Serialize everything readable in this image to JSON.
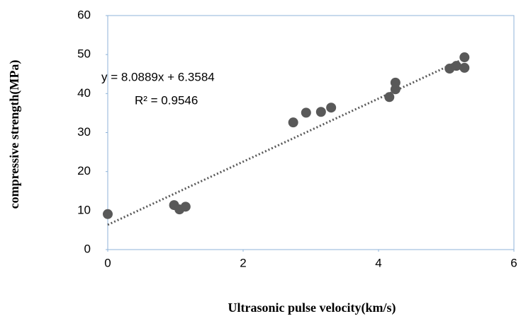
{
  "chart_data": {
    "type": "scatter",
    "x_label": "Ultrasonic pulse velocity(km/s)",
    "y_label": "compressive strength(MPa)",
    "annotations": [
      "y = 8.0889x + 6.3584",
      "R² = 0.9546"
    ],
    "trendline": {
      "slope": 8.0889,
      "intercept": 6.3584,
      "color": "#595959"
    },
    "color": "#595959",
    "x": [
      0,
      0.98,
      1.06,
      1.15,
      2.74,
      2.93,
      3.15,
      3.3,
      4.16,
      4.25,
      4.25,
      5.05,
      5.15,
      5.27,
      5.27
    ],
    "values": [
      9.1,
      11.4,
      10.3,
      11.0,
      32.6,
      35.1,
      35.3,
      36.4,
      39.1,
      41.1,
      42.8,
      46.4,
      47.1,
      49.3,
      46.6
    ],
    "xlim": [
      0,
      6
    ],
    "xticks": [
      0,
      2,
      4,
      6
    ],
    "ylim": [
      0,
      60
    ],
    "yticks": [
      0,
      10,
      20,
      30,
      40,
      50,
      60
    ]
  }
}
